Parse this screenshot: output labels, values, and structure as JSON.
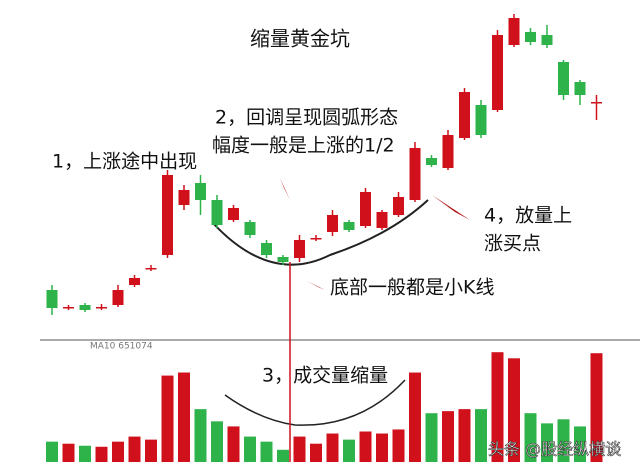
{
  "chart_data": {
    "type": "candlestick",
    "title": "缩量黄金坑",
    "annotations": [
      "1，上涨途中出现",
      "2，回调呈现圆弧形态",
      "幅度一般是上涨的1/2",
      "底部一般都是小K线",
      "3，成交量缩量",
      "4，放量上",
      "涨买点"
    ],
    "indicator_label": "MA10 651074",
    "watermark": "头条 @股经纵横谈",
    "up_color": "#d0101b",
    "down_color": "#2db34a",
    "ylim": [
      0,
      33
    ],
    "volume_ylim": [
      0,
      12
    ],
    "open": [
      4.0,
      2.2,
      2.5,
      2.3,
      2.5,
      4.5,
      6.2,
      7.5,
      12.5,
      14.7,
      13.0,
      11.0,
      10.8,
      8.7,
      7.3,
      7.2,
      9.2,
      9.8,
      10.8,
      10.4,
      10.2,
      11.5,
      13.0,
      17.2,
      16.2,
      19.2,
      22.5,
      22.0,
      28.5,
      29.8,
      29.5,
      26.8,
      24.8,
      22.8
    ],
    "close": [
      2.2,
      2.3,
      2.0,
      2.3,
      4.0,
      5.2,
      6.2,
      15.5,
      14.0,
      13.0,
      10.5,
      12.2,
      9.5,
      7.5,
      6.8,
      9.0,
      9.2,
      11.5,
      10.0,
      13.8,
      11.8,
      13.3,
      18.2,
      16.5,
      19.5,
      23.8,
      19.5,
      29.5,
      31.2,
      28.8,
      28.5,
      23.5,
      23.5,
      22.8
    ],
    "high": [
      4.5,
      2.5,
      2.7,
      2.6,
      4.5,
      5.5,
      6.5,
      16.0,
      14.5,
      15.5,
      13.5,
      12.5,
      11.0,
      9.0,
      7.5,
      9.5,
      9.5,
      12.0,
      11.0,
      14.2,
      12.0,
      13.8,
      18.8,
      17.5,
      20.0,
      24.2,
      23.0,
      30.0,
      31.6,
      30.2,
      30.5,
      27.0,
      25.0,
      23.5
    ],
    "low": [
      1.5,
      2.0,
      1.8,
      2.0,
      2.3,
      4.3,
      5.9,
      7.2,
      12.0,
      11.5,
      10.2,
      10.8,
      9.2,
      7.2,
      6.5,
      6.8,
      8.9,
      9.4,
      9.8,
      10.2,
      10.0,
      11.3,
      12.8,
      16.3,
      16.0,
      19.0,
      19.2,
      21.8,
      28.3,
      28.5,
      28.2,
      23.0,
      22.5,
      21.0
    ],
    "volume": [
      2.0,
      1.8,
      1.6,
      1.5,
      2.0,
      2.5,
      2.2,
      8.5,
      8.8,
      5.2,
      4.0,
      3.5,
      2.5,
      2.0,
      1.2,
      2.5,
      1.8,
      2.8,
      2.2,
      3.0,
      2.8,
      3.2,
      8.8,
      4.8,
      5.0,
      5.2,
      5.2,
      10.8,
      10.2,
      4.8,
      3.8,
      4.2,
      3.5,
      10.7
    ]
  }
}
